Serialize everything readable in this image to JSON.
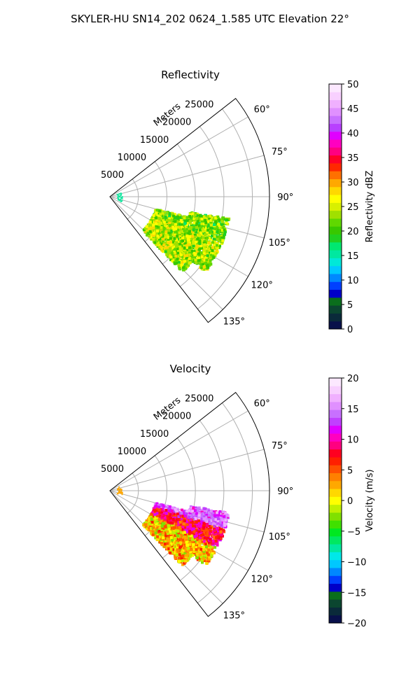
{
  "figure": {
    "title": "SKYLER-HU  SN14_202  0624_1.585 UTC Elevation 22°"
  },
  "chart_data": [
    {
      "type": "heatmap",
      "projection": "polar-sector",
      "title": "Reflectivity",
      "range_label": "Meters",
      "range_ticks": [
        5000,
        10000,
        15000,
        20000,
        25000
      ],
      "range_lim": [
        0,
        28000
      ],
      "azimuth_lim_deg": [
        52,
        142
      ],
      "azimuth_ticks": [
        "60°",
        "75°",
        "90°",
        "105°",
        "120°",
        "135°"
      ],
      "azimuth_tick_values": [
        60,
        75,
        90,
        105,
        120,
        135
      ],
      "grid": true,
      "colorbar": {
        "label": "Reflectivity dBZ",
        "min": 0,
        "max": 50,
        "ticks": [
          "0",
          "5",
          "10",
          "15",
          "20",
          "25",
          "30",
          "35",
          "40",
          "45",
          "50"
        ],
        "colors": [
          "#08104a",
          "#0a2a3a",
          "#0b4630",
          "#0a6e1c",
          "#0000c8",
          "#0040ff",
          "#0088ff",
          "#00c8ff",
          "#00e8d8",
          "#00e8a0",
          "#00e870",
          "#20d020",
          "#38c800",
          "#60d800",
          "#a0e000",
          "#d8f000",
          "#ffff00",
          "#ffd800",
          "#ffa800",
          "#ff7000",
          "#ff2800",
          "#ff0028",
          "#ff0080",
          "#ff00c0",
          "#e000ff",
          "#b840ff",
          "#c870ff",
          "#e090ff",
          "#f0b0ff",
          "#f8d0ff",
          "#fce8ff"
        ]
      },
      "echo": "scattered returns, strongest (about 20–28 dBZ) in a cluster near azimuth 105°–135° at 8–20 km"
    },
    {
      "type": "heatmap",
      "projection": "polar-sector",
      "title": "Velocity",
      "range_label": "Meters",
      "range_ticks": [
        5000,
        10000,
        15000,
        20000,
        25000
      ],
      "range_lim": [
        0,
        28000
      ],
      "azimuth_lim_deg": [
        52,
        142
      ],
      "azimuth_ticks": [
        "60°",
        "75°",
        "90°",
        "105°",
        "120°",
        "135°"
      ],
      "azimuth_tick_values": [
        60,
        75,
        90,
        105,
        120,
        135
      ],
      "grid": true,
      "colorbar": {
        "label": "Velocity (m/s)",
        "min": -20,
        "max": 20,
        "ticks": [
          "−20",
          "−15",
          "−10",
          "−5",
          "0",
          "5",
          "10",
          "15",
          "20"
        ],
        "colors": [
          "#08104a",
          "#0a2a3a",
          "#0b4630",
          "#0a6e1c",
          "#0000c8",
          "#0040ff",
          "#0088ff",
          "#00c8ff",
          "#00e8e8",
          "#00e8a0",
          "#00e860",
          "#00e820",
          "#40e000",
          "#80e000",
          "#c0f000",
          "#ffff00",
          "#ffd800",
          "#ffa800",
          "#ff8000",
          "#ff5000",
          "#ff2000",
          "#ff0020",
          "#ff0080",
          "#ff00c0",
          "#e000ff",
          "#c040ff",
          "#c870ff",
          "#e090ff",
          "#f0b0ff",
          "#f8d0ff",
          "#fce8ff"
        ]
      },
      "echo": "outbound (red, about 5–12 m/s) and purple (about 12–18 m/s) returns in the cluster near azimuth 100°–120°, near-zero (yellow/orange) toward 125°–135°"
    }
  ]
}
